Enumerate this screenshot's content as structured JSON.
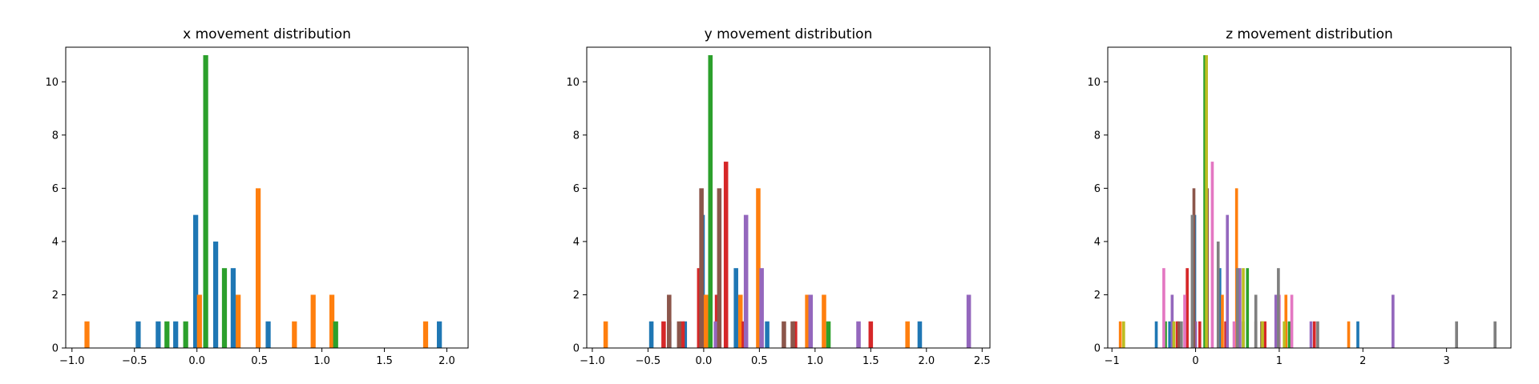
{
  "colors": [
    "#1f77b4",
    "#ff7f0e",
    "#2ca02c",
    "#d62728",
    "#9467bd",
    "#8c564b",
    "#e377c2",
    "#7f7f7f",
    "#bcbd22"
  ],
  "chart_data": [
    {
      "type": "bar",
      "title": "x movement distribution",
      "xlabel": "",
      "ylabel": "",
      "xlim": [
        -1.05,
        2.17
      ],
      "ylim": [
        0,
        11.3
      ],
      "xticks": [
        -1.0,
        -0.5,
        0.0,
        0.5,
        1.0,
        1.5,
        2.0
      ],
      "xtick_labels": [
        "−1.0",
        "−0.5",
        "0.0",
        "0.5",
        "1.0",
        "1.5",
        "2.0"
      ],
      "yticks": [
        0,
        2,
        4,
        6,
        8,
        10
      ],
      "ytick_labels": [
        "0",
        "2",
        "4",
        "6",
        "8",
        "10"
      ],
      "bar_width": 0.04,
      "series": [
        {
          "color": "#1f77b4",
          "x": [
            -0.47,
            -0.31,
            -0.17,
            -0.01,
            0.15,
            0.29,
            0.57,
            1.94
          ],
          "values": [
            1,
            1,
            1,
            5,
            4,
            3,
            1,
            1
          ]
        },
        {
          "color": "#ff7f0e",
          "x": [
            -0.88,
            0.02,
            0.33,
            0.49,
            0.78,
            0.93,
            1.08,
            1.83
          ],
          "values": [
            1,
            2,
            2,
            6,
            1,
            2,
            2,
            1
          ]
        },
        {
          "color": "#2ca02c",
          "x": [
            -0.24,
            -0.09,
            0.07,
            0.22,
            1.11
          ],
          "values": [
            1,
            1,
            11,
            3,
            1
          ]
        }
      ]
    },
    {
      "type": "bar",
      "title": "y movement distribution",
      "xlabel": "",
      "ylabel": "",
      "xlim": [
        -1.05,
        2.57
      ],
      "ylim": [
        0,
        11.3
      ],
      "xticks": [
        -1.0,
        -0.5,
        0.0,
        0.5,
        1.0,
        1.5,
        2.0,
        2.5
      ],
      "xtick_labels": [
        "−1.0",
        "−0.5",
        "0.0",
        "0.5",
        "1.0",
        "1.5",
        "2.0",
        "2.5"
      ],
      "yticks": [
        0,
        2,
        4,
        6,
        8,
        10
      ],
      "ytick_labels": [
        "0",
        "2",
        "4",
        "6",
        "8",
        "10"
      ],
      "bar_width": 0.04,
      "series": [
        {
          "color": "#1f77b4",
          "x": [
            -0.47,
            -0.31,
            -0.17,
            -0.01,
            0.29,
            0.57,
            1.94
          ],
          "values": [
            1,
            1,
            1,
            5,
            3,
            1,
            1
          ]
        },
        {
          "color": "#ff7f0e",
          "x": [
            -0.88,
            0.02,
            0.33,
            0.49,
            0.93,
            1.08,
            1.83
          ],
          "values": [
            1,
            2,
            2,
            6,
            2,
            2,
            1
          ]
        },
        {
          "color": "#2ca02c",
          "x": [
            0.06,
            1.12
          ],
          "values": [
            11,
            1
          ]
        },
        {
          "color": "#d62728",
          "x": [
            -0.36,
            -0.19,
            -0.04,
            0.12,
            0.2,
            0.36,
            0.82,
            1.5
          ],
          "values": [
            1,
            1,
            3,
            2,
            7,
            1,
            1,
            1
          ]
        },
        {
          "color": "#9467bd",
          "x": [
            0.11,
            0.38,
            0.52,
            0.96,
            1.39,
            2.38
          ],
          "values": [
            1,
            5,
            3,
            2,
            1,
            2
          ]
        },
        {
          "color": "#8c564b",
          "x": [
            -0.31,
            -0.22,
            -0.02,
            0.14,
            0.72,
            0.8
          ],
          "values": [
            2,
            1,
            6,
            6,
            1,
            1
          ]
        }
      ]
    },
    {
      "type": "bar",
      "title": "z movement distribution",
      "xlabel": "",
      "ylabel": "",
      "xlim": [
        -1.05,
        3.77
      ],
      "ylim": [
        0,
        11.3
      ],
      "xticks": [
        -1,
        0,
        1,
        2,
        3
      ],
      "xtick_labels": [
        "−1",
        "0",
        "1",
        "2",
        "3"
      ],
      "yticks": [
        0,
        2,
        4,
        6,
        8,
        10
      ],
      "ytick_labels": [
        "0",
        "2",
        "4",
        "6",
        "8",
        "10"
      ],
      "bar_width": 0.035,
      "series": [
        {
          "color": "#1f77b4",
          "x": [
            -0.47,
            -0.31,
            -0.01,
            0.29,
            0.57,
            1.94
          ],
          "values": [
            1,
            1,
            5,
            3,
            1,
            1
          ]
        },
        {
          "color": "#ff7f0e",
          "x": [
            -0.9,
            0.32,
            0.49,
            1.08,
            1.83
          ],
          "values": [
            1,
            2,
            6,
            2,
            1
          ]
        },
        {
          "color": "#2ca02c",
          "x": [
            -0.36,
            0.11,
            0.62,
            1.12
          ],
          "values": [
            1,
            11,
            3,
            1
          ]
        },
        {
          "color": "#d62728",
          "x": [
            -0.22,
            -0.1,
            0.05,
            0.36,
            0.83,
            1.42
          ],
          "values": [
            1,
            3,
            1,
            1,
            1,
            1
          ]
        },
        {
          "color": "#9467bd",
          "x": [
            -0.28,
            0.0,
            0.38,
            0.53,
            0.96,
            1.38,
            2.36
          ],
          "values": [
            2,
            1,
            5,
            3,
            2,
            1,
            2
          ]
        },
        {
          "color": "#8c564b",
          "x": [
            -0.2,
            -0.02,
            0.14,
            0.72,
            0.79
          ],
          "values": [
            1,
            6,
            6,
            1,
            1
          ]
        },
        {
          "color": "#e377c2",
          "x": [
            -0.38,
            -0.13,
            0.2,
            0.46,
            1.0,
            1.15
          ],
          "values": [
            3,
            2,
            7,
            1,
            2,
            2
          ]
        },
        {
          "color": "#7f7f7f",
          "x": [
            -0.17,
            -0.04,
            0.27,
            0.5,
            0.72,
            0.99,
            1.46,
            3.12,
            3.58
          ],
          "values": [
            1,
            5,
            4,
            3,
            2,
            3,
            1,
            1,
            1
          ]
        },
        {
          "color": "#bcbd22",
          "x": [
            -0.86,
            -0.26,
            0.13,
            0.57,
            0.8,
            1.06
          ],
          "values": [
            1,
            1,
            11,
            3,
            1,
            1
          ]
        }
      ]
    }
  ]
}
